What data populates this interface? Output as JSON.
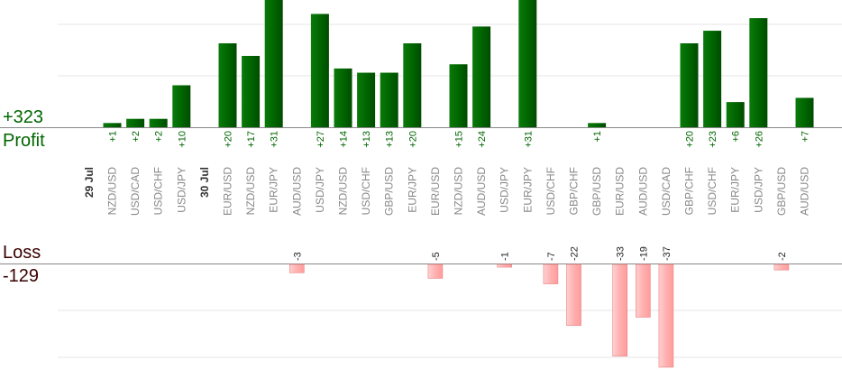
{
  "summary": {
    "profit_total": "+323",
    "profit_label": "Profit",
    "loss_label": "Loss",
    "loss_total": "-129"
  },
  "colors": {
    "profit_bar": "#006600",
    "profit_text": "#006600",
    "loss_bar": "#ffb0b0",
    "loss_border": "#e88080",
    "axis": "#888888",
    "grid": "#e6e6e6",
    "pair_text": "#888888",
    "date_text": "#333333"
  },
  "chart_data": {
    "type": "bar",
    "profit_max": 31,
    "loss_max": 37,
    "days": [
      {
        "label": "29 Jul",
        "start_index": 0
      },
      {
        "label": "30 Jul",
        "start_index": 4
      }
    ],
    "trades": [
      {
        "pair": "NZD/USD",
        "value": 1
      },
      {
        "pair": "USD/CAD",
        "value": 2
      },
      {
        "pair": "USD/CHF",
        "value": 2
      },
      {
        "pair": "USD/JPY",
        "value": 10
      },
      {
        "pair": "EUR/USD",
        "value": 20
      },
      {
        "pair": "NZD/USD",
        "value": 17
      },
      {
        "pair": "EUR/JPY",
        "value": 31
      },
      {
        "pair": "AUD/USD",
        "value": -3
      },
      {
        "pair": "USD/JPY",
        "value": 27
      },
      {
        "pair": "NZD/USD",
        "value": 14
      },
      {
        "pair": "USD/CHF",
        "value": 13
      },
      {
        "pair": "GBP/USD",
        "value": 13
      },
      {
        "pair": "EUR/JPY",
        "value": 20
      },
      {
        "pair": "EUR/USD",
        "value": -5
      },
      {
        "pair": "NZD/USD",
        "value": 15
      },
      {
        "pair": "AUD/USD",
        "value": 24
      },
      {
        "pair": "USD/JPY",
        "value": -1
      },
      {
        "pair": "EUR/JPY",
        "value": 31
      },
      {
        "pair": "USD/CHF",
        "value": -7
      },
      {
        "pair": "GBP/CHF",
        "value": -22
      },
      {
        "pair": "GBP/USD",
        "value": 1
      },
      {
        "pair": "EUR/USD",
        "value": -33
      },
      {
        "pair": "AUD/USD",
        "value": -19
      },
      {
        "pair": "USD/CAD",
        "value": -37
      },
      {
        "pair": "GBP/CHF",
        "value": 20
      },
      {
        "pair": "USD/CHF",
        "value": 23
      },
      {
        "pair": "EUR/JPY",
        "value": 6
      },
      {
        "pair": "USD/JPY",
        "value": 26
      },
      {
        "pair": "GBP/USD",
        "value": -2
      },
      {
        "pair": "AUD/USD",
        "value": 7
      }
    ]
  }
}
